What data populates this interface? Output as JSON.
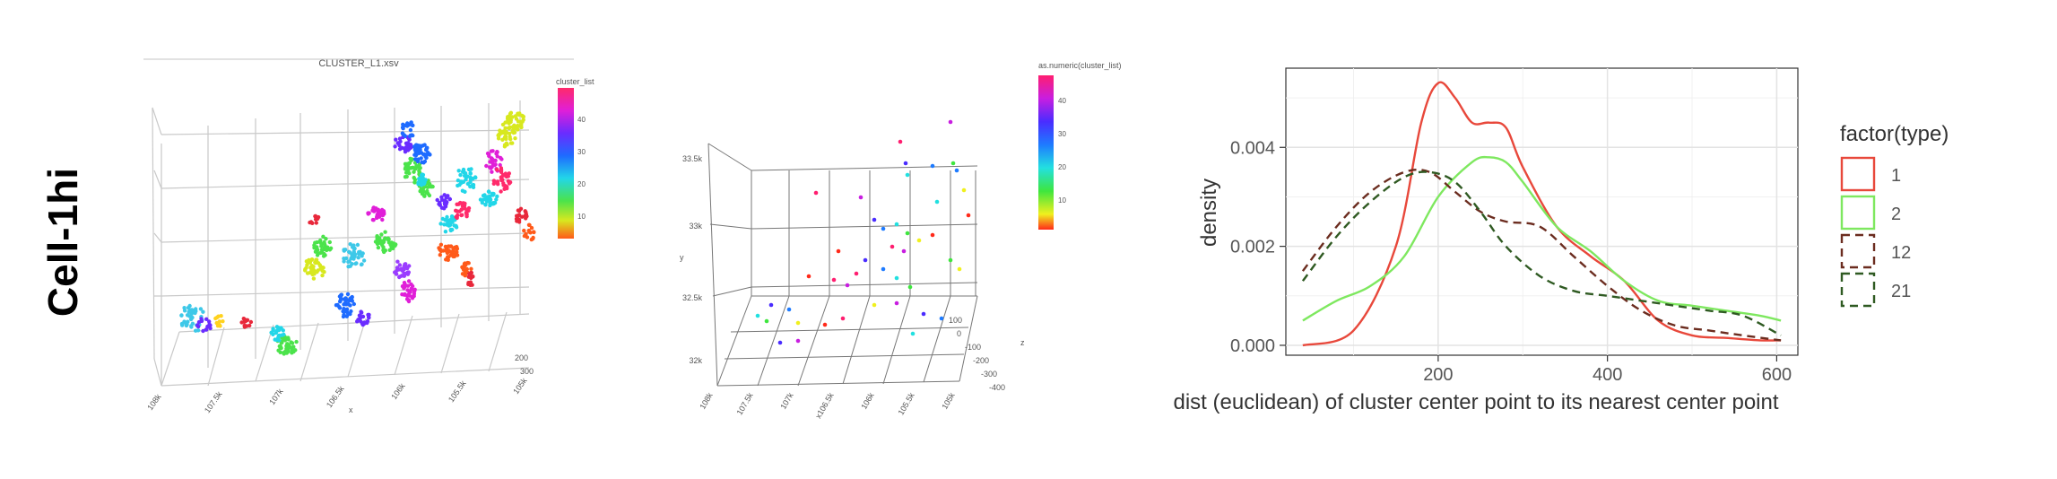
{
  "row_label": "Cell-1hi",
  "chart_data": [
    {
      "type": "scatter",
      "panel": "3d-scatter-left",
      "title": "CLUSTER_L1.xsv",
      "legend_title": "cluster_list",
      "colorbar_ticks": [
        "40",
        "30",
        "20",
        "10"
      ],
      "x_ticks": [
        "108k",
        "107.5k",
        "107k",
        "106.5k",
        "106k",
        "105.5k",
        "105k"
      ],
      "x_label": "x",
      "z_ticks": [
        "200",
        "300"
      ]
    },
    {
      "type": "scatter",
      "panel": "3d-scatter-middle",
      "legend_title": "as.numeric(cluster_list)",
      "colorbar_ticks": [
        "40",
        "30",
        "20",
        "10"
      ],
      "y_ticks": [
        "33.5k",
        "33k",
        "32.5k",
        "32k"
      ],
      "y_label": "y",
      "x_ticks": [
        "108k",
        "107.5k",
        "107k",
        "x106.5k",
        "106k",
        "105.5k",
        "105k"
      ],
      "z_ticks": [
        "100",
        "0",
        "-100",
        "-200",
        "-300",
        "-400"
      ],
      "z_label": "z"
    },
    {
      "type": "line",
      "panel": "density-plot",
      "xlabel": "dist (euclidean) of cluster center point to its nearest center point",
      "ylabel": "density",
      "xlim": [
        20,
        625
      ],
      "ylim": [
        -0.0002,
        0.0056
      ],
      "x_ticks": [
        200,
        400,
        600
      ],
      "x_tick_labels": [
        "200",
        "400",
        "600"
      ],
      "y_ticks": [
        0,
        0.002,
        0.004
      ],
      "y_tick_labels": [
        "0.000",
        "0.002",
        "0.004"
      ],
      "grid": true,
      "legend_title": "factor(type)",
      "legend_position": "right",
      "series": [
        {
          "name": "1",
          "color": "#e8483b",
          "dash": "solid",
          "x": [
            40,
            100,
            150,
            180,
            200,
            220,
            240,
            260,
            280,
            300,
            340,
            380,
            420,
            460,
            500,
            540,
            580,
            605
          ],
          "y": [
            0.0,
            0.0003,
            0.002,
            0.0045,
            0.0053,
            0.005,
            0.0045,
            0.0045,
            0.0044,
            0.0036,
            0.0024,
            0.0018,
            0.0013,
            0.0005,
            0.0002,
            0.00015,
            0.0001,
            0.0001
          ]
        },
        {
          "name": "2",
          "color": "#7ee85f",
          "dash": "solid",
          "x": [
            40,
            80,
            120,
            160,
            200,
            240,
            260,
            280,
            300,
            340,
            380,
            420,
            460,
            500,
            540,
            580,
            605
          ],
          "y": [
            0.0005,
            0.0009,
            0.0012,
            0.0018,
            0.003,
            0.0037,
            0.0038,
            0.0037,
            0.0033,
            0.0024,
            0.0019,
            0.0013,
            0.0009,
            0.0008,
            0.0007,
            0.0006,
            0.0005
          ]
        },
        {
          "name": "12",
          "color": "#6b2c1f",
          "dash": "dashed",
          "x": [
            40,
            80,
            120,
            160,
            190,
            220,
            250,
            280,
            320,
            360,
            400,
            440,
            480,
            520,
            560,
            605
          ],
          "y": [
            0.0015,
            0.0024,
            0.0031,
            0.0035,
            0.0035,
            0.0031,
            0.0027,
            0.0025,
            0.0024,
            0.0018,
            0.0012,
            0.0007,
            0.0004,
            0.0003,
            0.0002,
            0.0001
          ]
        },
        {
          "name": "21",
          "color": "#2f5a22",
          "dash": "dashed",
          "x": [
            40,
            80,
            120,
            160,
            190,
            220,
            250,
            280,
            320,
            360,
            400,
            440,
            480,
            520,
            560,
            605
          ],
          "y": [
            0.0013,
            0.0022,
            0.0029,
            0.0034,
            0.0035,
            0.0033,
            0.0027,
            0.002,
            0.0014,
            0.0011,
            0.001,
            0.0009,
            0.0008,
            0.0007,
            0.0006,
            0.0002
          ]
        }
      ]
    }
  ]
}
